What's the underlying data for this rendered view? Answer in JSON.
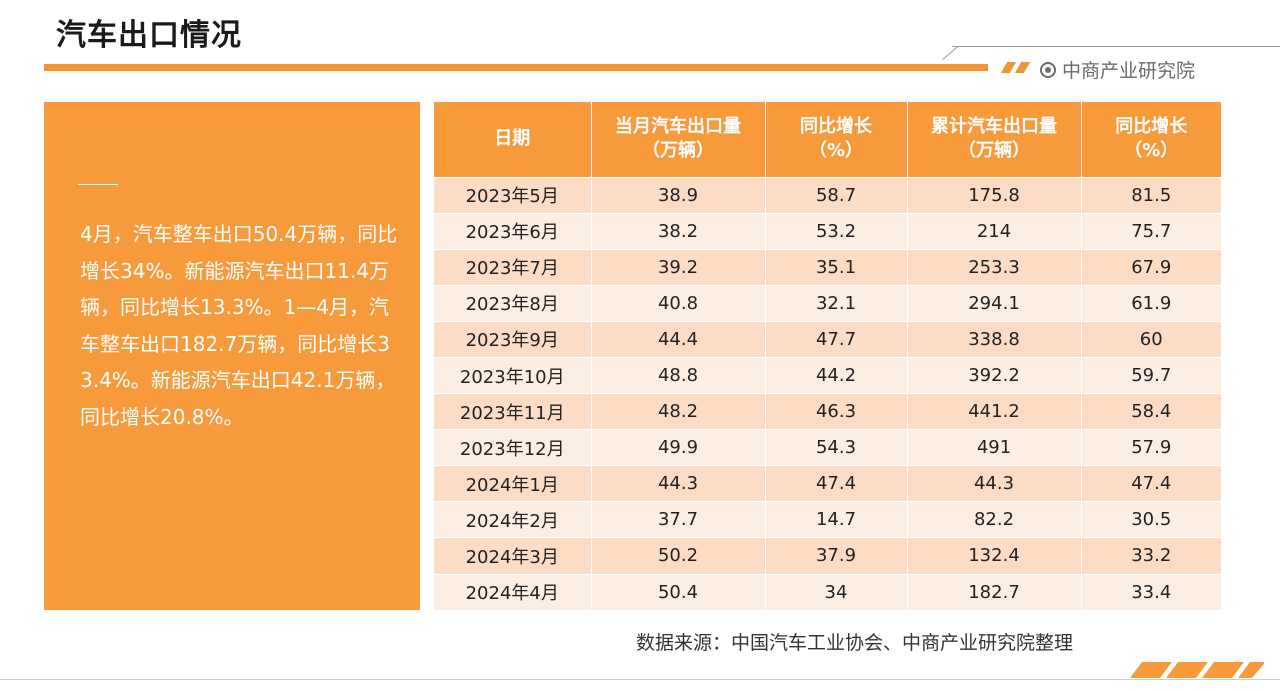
{
  "title": "汽车出口情况",
  "brand": {
    "name": "中商产业研究院",
    "icon": "target-circle-icon"
  },
  "panel": {
    "text": "4月，汽车整车出口50.4万辆，同比增长34%。新能源汽车出口11.4万辆，同比增长13.3%。1—4月，汽车整车出口182.7万辆，同比增长33.4%。新能源汽车出口42.1万辆，同比增长20.8%。"
  },
  "table": {
    "headers": [
      [
        "日期"
      ],
      [
        "当月汽车出口量",
        "（万辆）"
      ],
      [
        "同比增长",
        "（%）"
      ],
      [
        "累计汽车出口量",
        "（万辆）"
      ],
      [
        "同比增长",
        "（%）"
      ]
    ],
    "rows": [
      [
        "2023年5月",
        "38.9",
        "58.7",
        "175.8",
        "81.5"
      ],
      [
        "2023年6月",
        "38.2",
        "53.2",
        "214",
        "75.7"
      ],
      [
        "2023年7月",
        "39.2",
        "35.1",
        "253.3",
        "67.9"
      ],
      [
        "2023年8月",
        "40.8",
        "32.1",
        "294.1",
        "61.9"
      ],
      [
        "2023年9月",
        "44.4",
        "47.7",
        "338.8",
        "60"
      ],
      [
        "2023年10月",
        "48.8",
        "44.2",
        "392.2",
        "59.7"
      ],
      [
        "2023年11月",
        "48.2",
        "46.3",
        "441.2",
        "58.4"
      ],
      [
        "2023年12月",
        "49.9",
        "54.3",
        "491",
        "57.9"
      ],
      [
        "2024年1月",
        "44.3",
        "47.4",
        "44.3",
        "47.4"
      ],
      [
        "2024年2月",
        "37.7",
        "14.7",
        "82.2",
        "30.5"
      ],
      [
        "2024年3月",
        "50.2",
        "37.9",
        "132.4",
        "33.2"
      ],
      [
        "2024年4月",
        "50.4",
        "34",
        "182.7",
        "33.4"
      ]
    ]
  },
  "source": "数据来源：中国汽车工业协会、中商产业研究院整理",
  "colors": {
    "accent": "#f79a3c",
    "row_dark": "#fcdcc5",
    "row_light": "#fdeee4"
  }
}
